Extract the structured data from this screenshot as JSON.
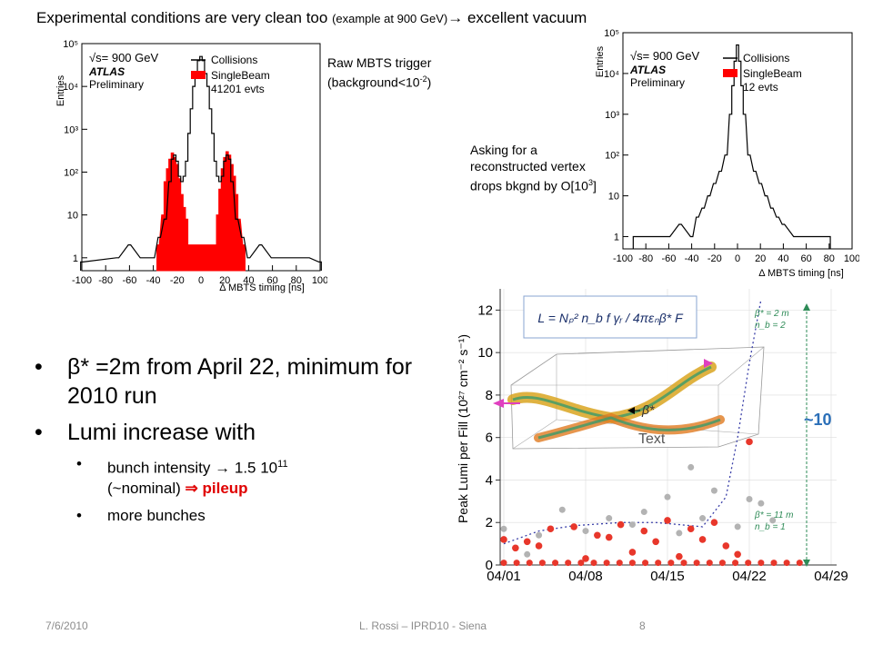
{
  "slide": {
    "title_main": "Experimental conditions are very clean too ",
    "title_small": "(example at 900 GeV)",
    "title_arrow": "→",
    "title_end": " excellent vacuum",
    "note_raw_line1": "Raw MBTS trigger",
    "note_raw_pre": "(background<10",
    "note_raw_sup": "-2",
    "note_raw_post": ")",
    "note_vertex": "Asking for a reconstructed vertex drops bkgnd by O[10",
    "note_vertex_sup": "3",
    "note_vertex_post": "]",
    "bullet1_sym": "β",
    "bullet1_text": "* =2m from April 22, minimum for 2010 run",
    "bullet2": "Lumi increase with",
    "sub1_pre": "bunch intensity ",
    "sub1_arrow": "→",
    "sub1_mid": " 1.5 10",
    "sub1_sup": "11",
    "sub1_nominal": "(~nominal) ",
    "sub1_arrow2": "⇒",
    "sub1_red": " pileup",
    "sub2": "more bunches",
    "footer_date": "7/6/2010",
    "footer_center": "L. Rossi  – IPRD10 - Siena",
    "footer_page": "8"
  },
  "colors": {
    "collisions": "#000000",
    "singlebeam": "#ff0000",
    "lumi_points_red": "#e8372b",
    "lumi_points_gray": "#b3b3b3",
    "fit_line": "#3a3fa8",
    "arrow_green": "#2e8b57",
    "arrow_blue": "#2b6fb8"
  },
  "chart_data": [
    {
      "type": "histogram",
      "id": "left",
      "xlabel": "Δ MBTS timing [ns]",
      "ylabel": "Entries",
      "ylog": true,
      "xlim": [
        -100,
        100
      ],
      "ylim": [
        0.5,
        100000
      ],
      "xticks": [
        "-100",
        "-80",
        "-60",
        "-40",
        "-20",
        "0",
        "20",
        "40",
        "60",
        "80",
        "100"
      ],
      "yticks": [
        "1",
        "10",
        "10²",
        "10³",
        "10⁴",
        "10⁵"
      ],
      "legend": {
        "energy": "√s= 900 GeV",
        "experiment": "ATLAS",
        "status": "Preliminary",
        "series1": "Collisions",
        "series2": "SingleBeam",
        "events": "41201 evts"
      },
      "collisions": [
        [
          -100,
          0.8
        ],
        [
          -70,
          1
        ],
        [
          -60,
          2
        ],
        [
          -50,
          1
        ],
        [
          -40,
          1
        ],
        [
          -35,
          3
        ],
        [
          -30,
          8
        ],
        [
          -26,
          60
        ],
        [
          -24,
          200
        ],
        [
          -22,
          250
        ],
        [
          -20,
          180
        ],
        [
          -18,
          80
        ],
        [
          -16,
          60
        ],
        [
          -14,
          80
        ],
        [
          -12,
          180
        ],
        [
          -10,
          800
        ],
        [
          -8,
          3000
        ],
        [
          -6,
          10000
        ],
        [
          -4,
          20000
        ],
        [
          -2,
          40000
        ],
        [
          0,
          50000
        ],
        [
          2,
          40000
        ],
        [
          4,
          20000
        ],
        [
          6,
          10000
        ],
        [
          8,
          3000
        ],
        [
          10,
          800
        ],
        [
          12,
          180
        ],
        [
          14,
          80
        ],
        [
          16,
          60
        ],
        [
          18,
          80
        ],
        [
          20,
          180
        ],
        [
          22,
          250
        ],
        [
          24,
          200
        ],
        [
          26,
          60
        ],
        [
          30,
          8
        ],
        [
          35,
          3
        ],
        [
          40,
          1
        ],
        [
          50,
          2
        ],
        [
          60,
          1
        ],
        [
          70,
          1
        ],
        [
          80,
          1
        ],
        [
          90,
          1
        ],
        [
          100,
          0.8
        ]
      ],
      "singlebeam": [
        [
          -36,
          2
        ],
        [
          -32,
          10
        ],
        [
          -30,
          60
        ],
        [
          -28,
          120
        ],
        [
          -26,
          200
        ],
        [
          -24,
          280
        ],
        [
          -22,
          220
        ],
        [
          -20,
          150
        ],
        [
          -18,
          70
        ],
        [
          -16,
          30
        ],
        [
          -14,
          15
        ],
        [
          -12,
          8
        ],
        [
          -10,
          2
        ],
        [
          12,
          2
        ],
        [
          14,
          10
        ],
        [
          16,
          40
        ],
        [
          18,
          120
        ],
        [
          20,
          220
        ],
        [
          22,
          300
        ],
        [
          24,
          250
        ],
        [
          26,
          150
        ],
        [
          28,
          80
        ],
        [
          30,
          30
        ],
        [
          32,
          8
        ],
        [
          36,
          2
        ]
      ]
    },
    {
      "type": "histogram",
      "id": "right",
      "xlabel": "Δ MBTS timing [ns]",
      "ylabel": "Entries",
      "ylog": true,
      "xlim": [
        -100,
        100
      ],
      "ylim": [
        0.5,
        100000
      ],
      "xticks": [
        "-100",
        "-80",
        "-60",
        "-40",
        "-20",
        "0",
        "20",
        "40",
        "60",
        "80",
        "100"
      ],
      "yticks": [
        "1",
        "10",
        "10²",
        "10³",
        "10⁴",
        "10⁵"
      ],
      "legend": {
        "energy": "√s= 900 GeV",
        "experiment": "ATLAS",
        "status": "Preliminary",
        "series1": "Collisions",
        "series2": "SingleBeam",
        "events": "12 evts"
      },
      "collisions": [
        [
          -90,
          1
        ],
        [
          -80,
          1
        ],
        [
          -60,
          1
        ],
        [
          -50,
          2
        ],
        [
          -40,
          1
        ],
        [
          -35,
          3
        ],
        [
          -30,
          5
        ],
        [
          -25,
          10
        ],
        [
          -20,
          20
        ],
        [
          -15,
          40
        ],
        [
          -10,
          100
        ],
        [
          -6,
          1000
        ],
        [
          -4,
          5000
        ],
        [
          -2,
          20000
        ],
        [
          0,
          50000
        ],
        [
          2,
          20000
        ],
        [
          4,
          5000
        ],
        [
          6,
          1000
        ],
        [
          10,
          100
        ],
        [
          15,
          40
        ],
        [
          20,
          20
        ],
        [
          25,
          10
        ],
        [
          30,
          5
        ],
        [
          35,
          3
        ],
        [
          40,
          2
        ],
        [
          50,
          1
        ],
        [
          60,
          1
        ],
        [
          70,
          1
        ],
        [
          80,
          1
        ]
      ],
      "singlebeam": []
    },
    {
      "type": "scatter",
      "id": "lumi",
      "ylabel": "Peak Lumi per Fill (10²⁷ cm⁻² s⁻¹)",
      "xticks": [
        "04/01",
        "04/08",
        "04/15",
        "04/22",
        "04/29"
      ],
      "ylim": [
        0,
        13
      ],
      "yticks": [
        "0",
        "2",
        "4",
        "6",
        "8",
        "10",
        "12"
      ],
      "formula": "L = Nₚ² n_b f γᵣ / 4πεₙβ* F",
      "beta_label": "β*",
      "annotation_top": [
        "β* = 2 m",
        "n_b = 2"
      ],
      "annotation_bottom": [
        "β* = 11 m",
        "n_b = 1"
      ],
      "factor": "~10",
      "text_placeholder": "Text",
      "points_red": [
        [
          0,
          1.2
        ],
        [
          1,
          0.8
        ],
        [
          2,
          1.1
        ],
        [
          3,
          0.9
        ],
        [
          4,
          1.7
        ],
        [
          6,
          1.8
        ],
        [
          7,
          0.3
        ],
        [
          8,
          1.4
        ],
        [
          9,
          1.3
        ],
        [
          10,
          1.9
        ],
        [
          11,
          0.6
        ],
        [
          12,
          1.6
        ],
        [
          13,
          1.1
        ],
        [
          14,
          2.1
        ],
        [
          15,
          0.4
        ],
        [
          16,
          1.7
        ],
        [
          17,
          1.2
        ],
        [
          18,
          2.0
        ],
        [
          19,
          0.9
        ],
        [
          20,
          0.5
        ],
        [
          21,
          5.8
        ]
      ],
      "points_gray": [
        [
          0,
          1.7
        ],
        [
          2,
          0.5
        ],
        [
          3,
          1.4
        ],
        [
          5,
          2.6
        ],
        [
          7,
          1.6
        ],
        [
          9,
          2.2
        ],
        [
          11,
          1.9
        ],
        [
          12,
          2.5
        ],
        [
          14,
          3.2
        ],
        [
          15,
          1.5
        ],
        [
          16,
          4.6
        ],
        [
          17,
          2.2
        ],
        [
          18,
          3.5
        ],
        [
          20,
          1.8
        ],
        [
          21,
          3.1
        ],
        [
          22,
          2.9
        ],
        [
          23,
          2.1
        ]
      ],
      "fit_curve": [
        [
          0,
          1.0
        ],
        [
          3,
          1.6
        ],
        [
          6,
          1.85
        ],
        [
          10,
          2.0
        ],
        [
          13,
          2.0
        ],
        [
          15,
          1.9
        ],
        [
          17,
          1.8
        ],
        [
          19,
          3.2
        ],
        [
          20,
          6.0
        ],
        [
          21,
          9.5
        ],
        [
          22,
          12.5
        ]
      ]
    }
  ]
}
